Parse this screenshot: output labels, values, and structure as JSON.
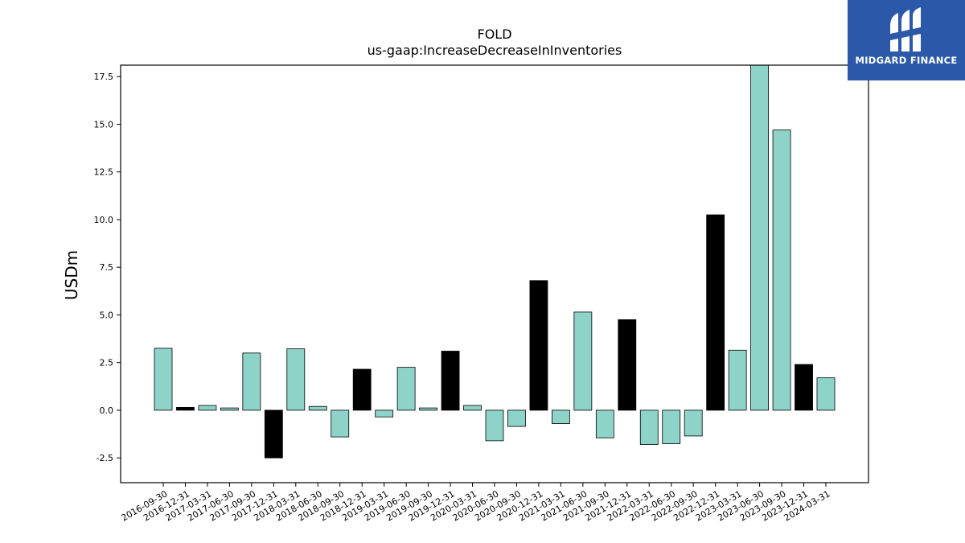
{
  "chart_data": {
    "type": "bar",
    "title": "FOLD",
    "subtitle": "us-gaap:IncreaseDecreaseInInventories",
    "xlabel": "",
    "ylabel": "USDm",
    "ylim": [
      -3.8,
      18.1
    ],
    "yticks": [
      -2.5,
      0.0,
      2.5,
      5.0,
      7.5,
      10.0,
      12.5,
      15.0,
      17.5
    ],
    "grid": false,
    "colors": {
      "default": "#8dd3c7",
      "highlight": "#000000",
      "edge": "#000000"
    },
    "categories": [
      "2016-09-30",
      "2016-12-31",
      "2017-03-31",
      "2017-06-30",
      "2017-09-30",
      "2017-12-31",
      "2018-03-31",
      "2018-06-30",
      "2018-09-30",
      "2018-12-31",
      "2019-03-31",
      "2019-06-30",
      "2019-09-30",
      "2019-12-31",
      "2020-03-31",
      "2020-06-30",
      "2020-09-30",
      "2020-12-31",
      "2021-03-31",
      "2021-06-30",
      "2021-09-30",
      "2021-12-31",
      "2022-03-31",
      "2022-06-30",
      "2022-09-30",
      "2022-12-31",
      "2023-03-31",
      "2023-06-30",
      "2023-09-30",
      "2023-12-31",
      "2024-03-31"
    ],
    "values": [
      3.25,
      0.15,
      0.25,
      0.12,
      3.0,
      -2.5,
      3.22,
      0.2,
      -1.4,
      2.15,
      -0.35,
      2.25,
      0.12,
      3.1,
      0.25,
      -1.6,
      -0.85,
      6.8,
      -0.7,
      5.15,
      -1.45,
      4.75,
      -1.8,
      -1.75,
      -1.35,
      10.25,
      3.15,
      18.1,
      14.7,
      2.4,
      1.7
    ],
    "highlight": [
      false,
      true,
      false,
      false,
      false,
      true,
      false,
      false,
      false,
      true,
      false,
      false,
      false,
      true,
      false,
      false,
      false,
      true,
      false,
      false,
      false,
      true,
      false,
      false,
      false,
      true,
      false,
      false,
      false,
      true,
      false
    ]
  },
  "logo": {
    "text": "MIDGARD FINANCE",
    "icon": "midgard-logo-icon"
  }
}
